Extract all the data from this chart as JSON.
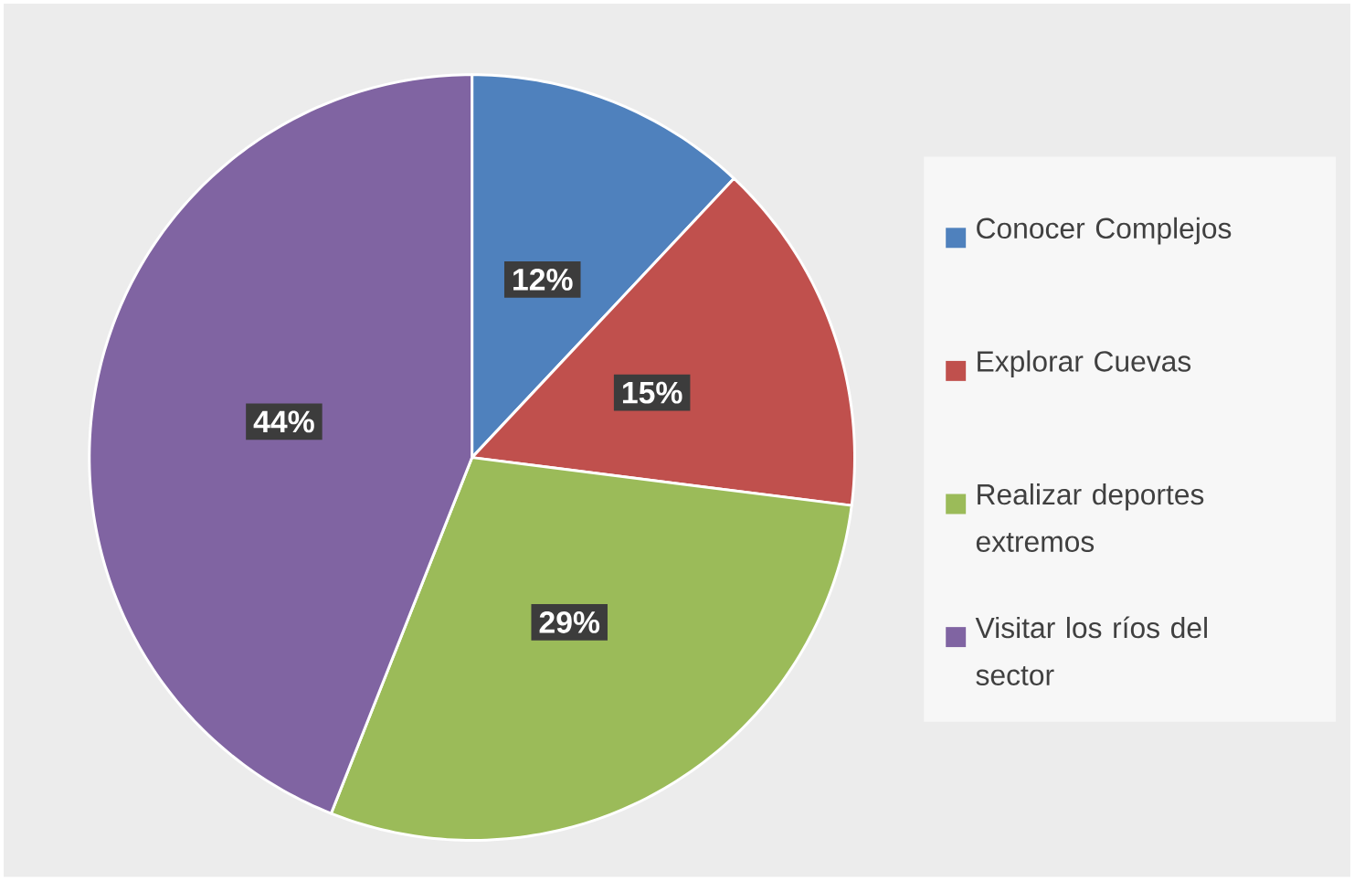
{
  "chart_data": {
    "type": "pie",
    "categories": [
      "Conocer Complejos",
      "Explorar Cuevas",
      "Realizar deportes extremos",
      "Visitar los ríos del sector"
    ],
    "values": [
      12,
      15,
      29,
      44
    ],
    "value_labels": [
      "12%",
      "15%",
      "29%",
      "44%"
    ],
    "colors": [
      "#4f81bd",
      "#c0504d",
      "#9bbb59",
      "#8064a2"
    ],
    "legend": "right"
  }
}
